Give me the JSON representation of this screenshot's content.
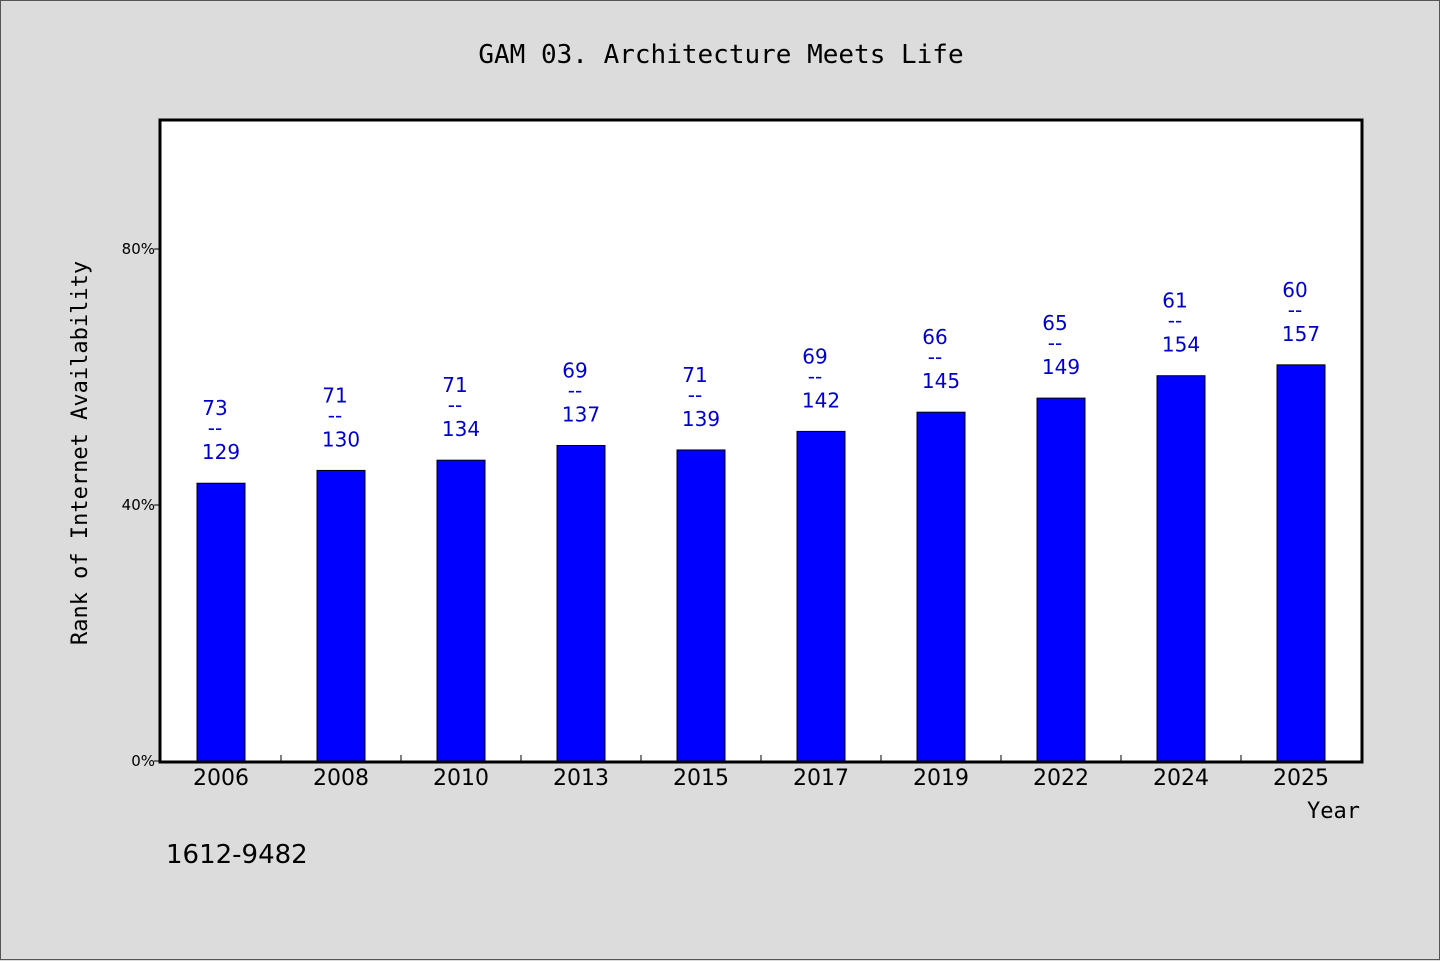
{
  "chart_data": {
    "type": "bar",
    "title": "GAM 03. Architecture Meets Life",
    "xlabel": "Year",
    "ylabel": "Rank of Internet Availability",
    "categories": [
      "2006",
      "2008",
      "2010",
      "2013",
      "2015",
      "2017",
      "2019",
      "2022",
      "2024",
      "2025"
    ],
    "values": [
      43.4,
      45.4,
      47.0,
      49.3,
      48.6,
      51.5,
      54.5,
      56.7,
      60.2,
      61.9
    ],
    "ranks": [
      "73",
      "71",
      "71",
      "69",
      "71",
      "69",
      "66",
      "65",
      "61",
      "60"
    ],
    "rank_separator": "--",
    "totals": [
      "129",
      "130",
      "134",
      "137",
      "139",
      "142",
      "145",
      "149",
      "154",
      "157"
    ],
    "ylim": [
      0,
      100
    ],
    "yticks": [
      0,
      40,
      80
    ],
    "ytick_labels": [
      "0%",
      "40%",
      "80%"
    ],
    "grid": false,
    "bar_color": "#0000ff",
    "label_color": "#0000cc"
  },
  "footer": {
    "code": "1612-9482"
  }
}
